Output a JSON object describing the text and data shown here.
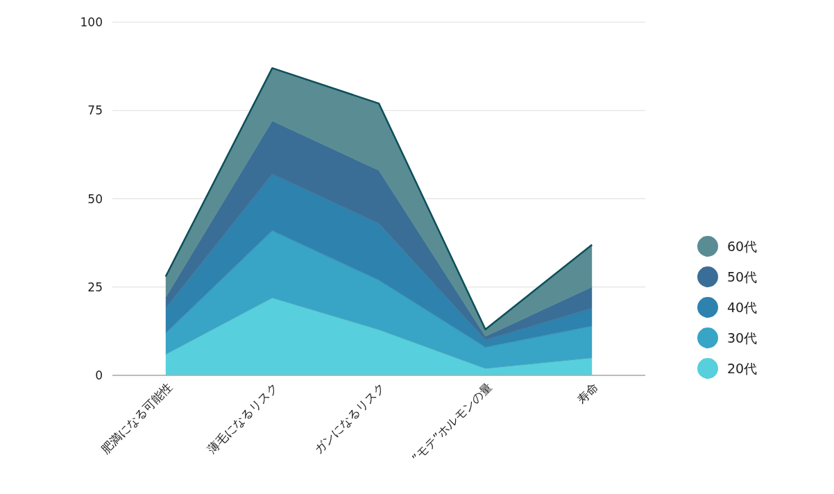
{
  "chart_data": {
    "type": "area",
    "stacked": true,
    "categories": [
      "肥満になる可能性",
      "薄毛になるリスク",
      "ガンになるリスク",
      "”モテ”ホルモンの量",
      "寿命"
    ],
    "series": [
      {
        "name": "20代",
        "color": "#57cfdc",
        "values": [
          6,
          22,
          13,
          2,
          5
        ]
      },
      {
        "name": "30代",
        "color": "#38a4c6",
        "values": [
          6,
          19,
          14,
          6,
          9
        ]
      },
      {
        "name": "40代",
        "color": "#2e82ae",
        "values": [
          7,
          16,
          16,
          2,
          5
        ]
      },
      {
        "name": "50代",
        "color": "#3b6e96",
        "values": [
          3,
          15,
          15,
          1,
          6
        ]
      },
      {
        "name": "60代",
        "color": "#5a8c94",
        "values": [
          6,
          15,
          19,
          2,
          12
        ]
      }
    ],
    "ylim": [
      0,
      100
    ],
    "yticks": [
      0,
      25,
      50,
      75,
      100
    ],
    "grid": "y",
    "legend": "right"
  }
}
